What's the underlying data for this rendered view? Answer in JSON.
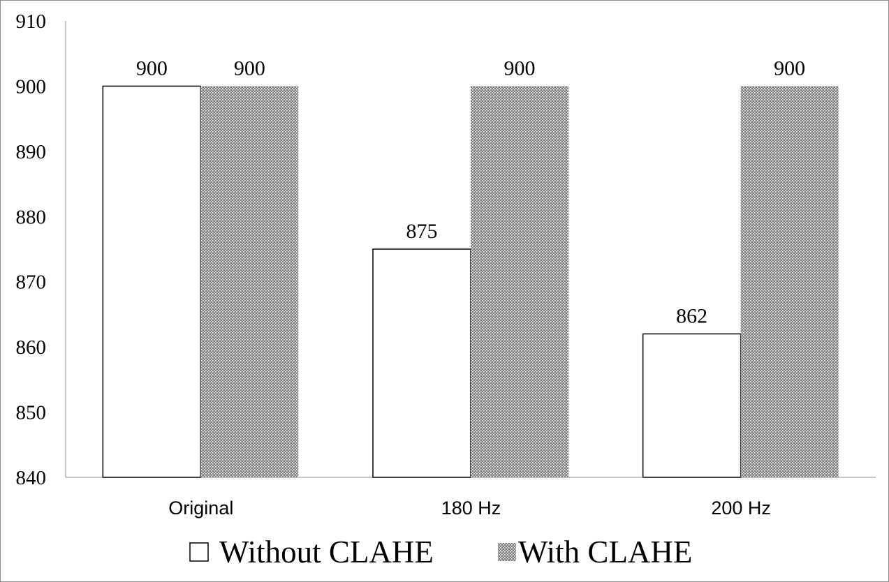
{
  "chart_data": {
    "type": "bar",
    "categories": [
      "Original",
      "180 Hz",
      "200 Hz"
    ],
    "series": [
      {
        "name": "Without CLAHE",
        "values": [
          900,
          875,
          862
        ],
        "fill": "#ffffff",
        "pattern": "none"
      },
      {
        "name": "With CLAHE",
        "values": [
          900,
          900,
          900
        ],
        "fill": "#8a8a8a",
        "pattern": "dots"
      }
    ],
    "data_labels": [
      [
        "900",
        "875",
        "862"
      ],
      [
        "900",
        "900",
        "900"
      ]
    ],
    "yticks": [
      840,
      850,
      860,
      870,
      880,
      890,
      900,
      910
    ],
    "ylim": [
      840,
      910
    ],
    "grid": false,
    "legend_position": "bottom",
    "colors": {
      "bar_stroke": "#000000",
      "axis": "#8c8c8c",
      "pattern_dot": "#ffffff",
      "pattern_bg": "#7a7a7a"
    }
  }
}
